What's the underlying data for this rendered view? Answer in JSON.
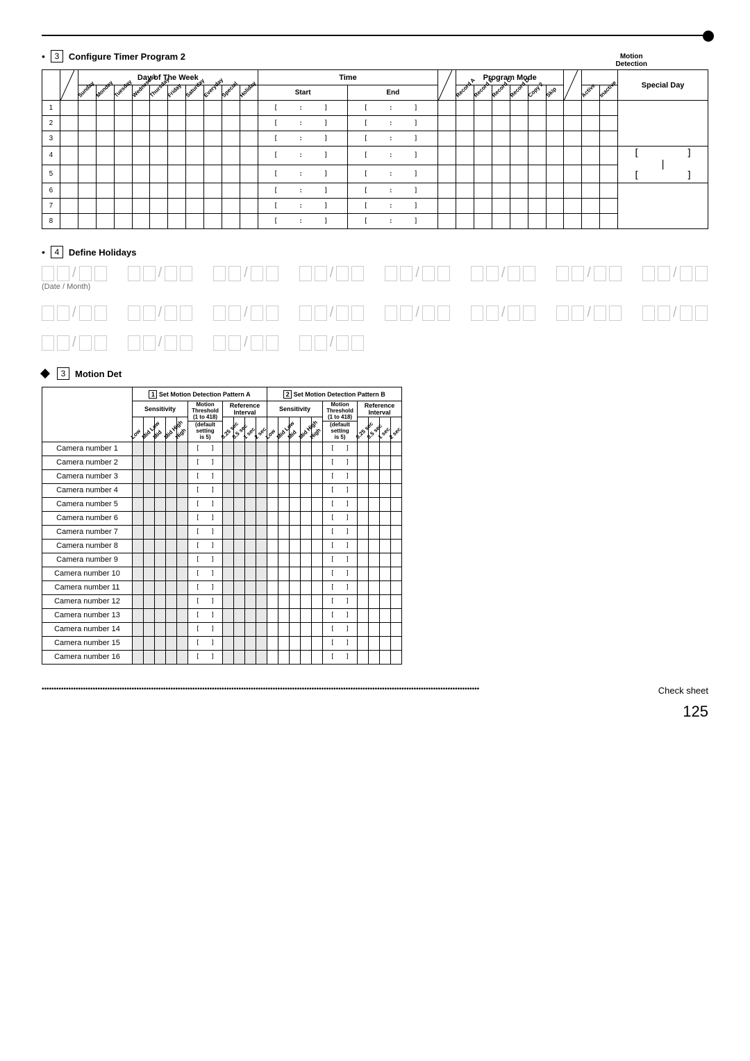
{
  "section3": {
    "title": "Configure Timer Program 2",
    "step": "3"
  },
  "timer_headers": {
    "day_of_week": "Day of The Week",
    "time": "Time",
    "program_mode": "Program Mode",
    "motion_detection_top": "Motion",
    "motion_detection_bot": "Detection",
    "start": "Start",
    "end": "End",
    "special_day": "Special Day",
    "days": [
      "Sunday",
      "Monday",
      "Tuesday",
      "Wednesday",
      "Thursday",
      "Friday",
      "Saturday",
      "Everyday",
      "Special",
      "Holiday"
    ],
    "modes": [
      "Record A",
      "Record B",
      "Record C",
      "Record D",
      "Copy 2",
      "Skip"
    ],
    "md": [
      "Active",
      "Inactive"
    ]
  },
  "timer_rows": [
    1,
    2,
    3,
    4,
    5,
    6,
    7,
    8
  ],
  "special_brackets": [
    "[",
    "]",
    "[",
    "]"
  ],
  "special_mid": "|",
  "section4": {
    "title": "Define Holidays",
    "step": "4",
    "date_label": "(Date / Month)"
  },
  "holidays_count": 20,
  "section_motion": {
    "title": "Motion Det",
    "step": "3"
  },
  "motion_headers": {
    "patA": "Set Motion Detection Pattern A",
    "patB": "Set Motion Detection Pattern B",
    "patA_num": "1",
    "patB_num": "2",
    "sensitivity": "Sensitivity",
    "motion": "Motion",
    "threshold": "Threshold",
    "ref_interval": "Reference Interval",
    "threshold_range": "(1 to 418)",
    "threshold_default1": "(default",
    "threshold_default2": "setting",
    "threshold_default3": "is 5)",
    "sens_labels": [
      "Low",
      "Mid Low",
      "Mid",
      "Mid High",
      "High"
    ],
    "ref_labels": [
      "0.25 sec",
      "0.5 sec",
      "1 sec",
      "2 sec"
    ]
  },
  "cameras": [
    "Camera number 1",
    "Camera number 2",
    "Camera number 3",
    "Camera number 4",
    "Camera number 5",
    "Camera number 6",
    "Camera number 7",
    "Camera number 8",
    "Camera number 9",
    "Camera number 10",
    "Camera number 11",
    "Camera number 12",
    "Camera number 13",
    "Camera number 14",
    "Camera number 15",
    "Camera number 16"
  ],
  "footer": {
    "label": "Check sheet",
    "page": "125"
  },
  "colors": {
    "line": "#000000",
    "gray_fill": "#e8e8e8",
    "light_border": "#cccccc",
    "light_text": "#bbbbbb"
  }
}
